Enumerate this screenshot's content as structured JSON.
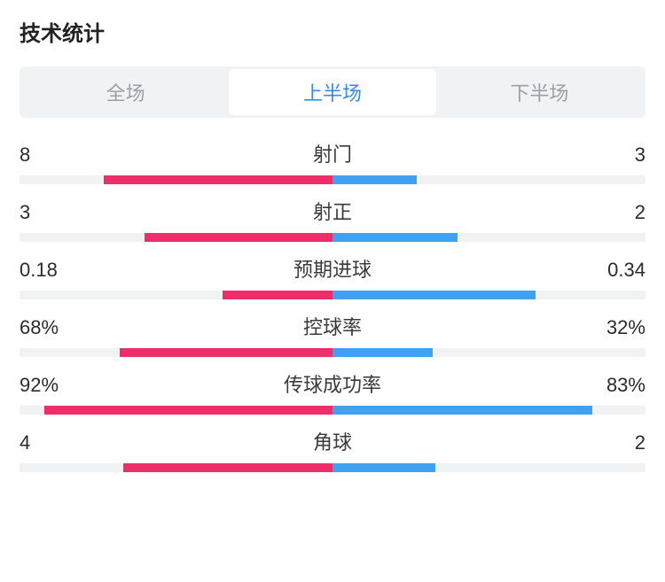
{
  "title": "技术统计",
  "colors": {
    "left": "#ec2f6b",
    "right": "#3fa1ef",
    "track": "#f1f2f4",
    "active_tab_text": "#2f8bff",
    "inactive_tab_text": "#9aa0a8",
    "text": "#2b2b2b"
  },
  "fonts": {
    "title_size": 24,
    "tab_size": 22,
    "value_size": 22,
    "label_size": 22
  },
  "tabs": [
    {
      "label": "全场",
      "active": false
    },
    {
      "label": "上半场",
      "active": true
    },
    {
      "label": "下半场",
      "active": false
    }
  ],
  "stats": [
    {
      "name": "射门",
      "left_label": "8",
      "right_label": "3",
      "left_pct": 73,
      "right_pct": 27
    },
    {
      "name": "射正",
      "left_label": "3",
      "right_label": "2",
      "left_pct": 60,
      "right_pct": 40
    },
    {
      "name": "预期进球",
      "left_label": "0.18",
      "right_label": "0.34",
      "left_pct": 35,
      "right_pct": 65
    },
    {
      "name": "控球率",
      "left_label": "68%",
      "right_label": "32%",
      "left_pct": 68,
      "right_pct": 32
    },
    {
      "name": "传球成功率",
      "left_label": "92%",
      "right_label": "83%",
      "left_pct": 92,
      "right_pct": 83
    },
    {
      "name": "角球",
      "left_label": "4",
      "right_label": "2",
      "left_pct": 67,
      "right_pct": 33
    }
  ]
}
